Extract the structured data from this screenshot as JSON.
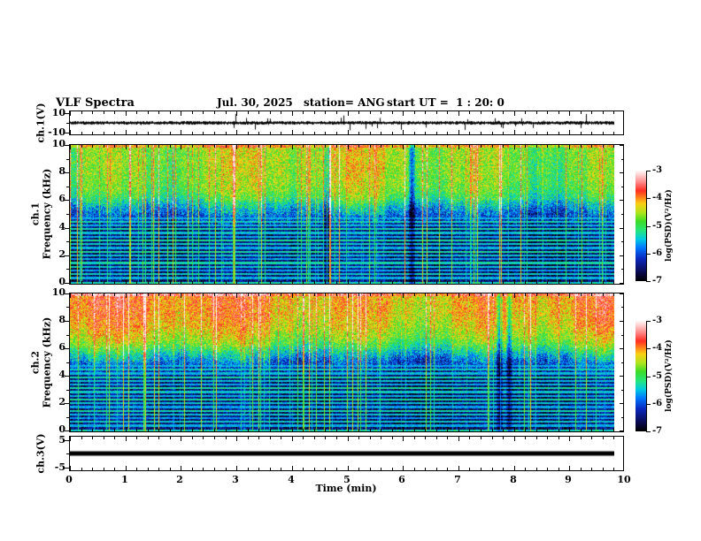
{
  "header": {
    "title": "VLF Spectra",
    "date": "Jul. 30, 2025",
    "station": "station= ANG",
    "start_ut": "start UT =  1 : 20: 0"
  },
  "axes": {
    "x": {
      "label": "Time (min)",
      "min": 0,
      "max": 10,
      "major_ticks": [
        0,
        1,
        2,
        3,
        4,
        5,
        6,
        7,
        8,
        9,
        10
      ],
      "minor_step_min": 0.2,
      "data_end_min": 9.8
    },
    "wave1_y": {
      "label": "ch.1(V)",
      "tick_labels": [
        "10",
        "-10"
      ],
      "tick_values": [
        10,
        -10
      ]
    },
    "spec_y": {
      "label_ch1": "ch.1",
      "label_ch2": "ch.2",
      "label_freq": "Frequency (kHz)",
      "major_ticks": [
        0,
        2,
        4,
        6,
        8,
        10
      ],
      "minor_ticks": [
        1,
        3,
        5,
        7,
        9
      ],
      "unit": "kHz"
    },
    "ch3_y": {
      "label": "ch.3(V)",
      "tick_labels": [
        "5",
        "-5"
      ],
      "tick_values": [
        5,
        -5
      ]
    }
  },
  "colorbar": {
    "label": "log(PSD)(V²/Hz)",
    "tick_labels": [
      "-3",
      "-4",
      "-5",
      "-6",
      "-7"
    ],
    "tick_values": [
      -3,
      -4,
      -5,
      -6,
      -7
    ],
    "zlim": [
      -7,
      -3
    ],
    "stops": [
      [
        0,
        0,
        0,
        0
      ],
      [
        0.08,
        10,
        10,
        80
      ],
      [
        0.2,
        10,
        40,
        190
      ],
      [
        0.3,
        0,
        120,
        255
      ],
      [
        0.38,
        0,
        205,
        225
      ],
      [
        0.46,
        40,
        230,
        120
      ],
      [
        0.54,
        60,
        220,
        40
      ],
      [
        0.62,
        175,
        230,
        30
      ],
      [
        0.7,
        250,
        210,
        20
      ],
      [
        0.76,
        255,
        130,
        25
      ],
      [
        0.82,
        255,
        45,
        35
      ],
      [
        0.9,
        255,
        140,
        140
      ],
      [
        1,
        255,
        246,
        246
      ]
    ]
  },
  "chart_data": [
    {
      "type": "line",
      "name": "ch1_waveform",
      "ylabel": "ch.1(V)",
      "xlim": [
        0,
        10
      ],
      "ylim": [
        -10,
        10
      ],
      "yticks": [
        10,
        -10
      ],
      "data_end_min": 9.8,
      "description": "Broadband noise centered on 0 V with ~±1.5 V envelope and impulsive sferic spikes reaching ±10 V across the full 0–9.8 min record."
    },
    {
      "type": "heatmap",
      "name": "ch1_spectrogram",
      "ylabel": "ch.1 Frequency (kHz)",
      "xlim": [
        0,
        10
      ],
      "ylim": [
        0,
        10
      ],
      "zlim": [
        -7,
        -3
      ],
      "zlabel": "log(PSD)(V²/Hz)",
      "yticks": [
        0,
        2,
        4,
        6,
        8,
        10
      ],
      "background_profile_khz_logpsd": [
        [
          0,
          -6.6
        ],
        [
          3.9,
          -6.6
        ],
        [
          4.4,
          -6.3
        ],
        [
          5.0,
          -5.95
        ],
        [
          5.6,
          -5.55
        ],
        [
          6.2,
          -5.05
        ],
        [
          6.8,
          -4.8
        ],
        [
          7.5,
          -4.7
        ],
        [
          8.5,
          -4.65
        ],
        [
          10,
          -4.6
        ]
      ],
      "narrowband_lines_khz_logpsd": [
        [
          0.45,
          -5.6
        ],
        [
          0.72,
          -5.45
        ],
        [
          0.99,
          -5.7
        ],
        [
          1.26,
          -5.5
        ],
        [
          1.53,
          -5.35
        ],
        [
          1.8,
          -5.65
        ],
        [
          2.07,
          -5.5
        ],
        [
          2.34,
          -5.3
        ],
        [
          2.61,
          -5.6
        ],
        [
          2.88,
          -5.45
        ],
        [
          3.15,
          -5.3
        ],
        [
          3.42,
          -5.6
        ],
        [
          3.69,
          -5.5
        ],
        [
          3.96,
          -5.35
        ],
        [
          4.23,
          -5.55
        ],
        [
          4.5,
          -5.4
        ],
        [
          4.77,
          -5.6
        ]
      ],
      "dropout_times_min": [
        4.62,
        6.15
      ],
      "description": "Green/yellow broadband hiss above ~5 kHz with red impulsive vertical sferic streaks; dark blue/black below ~4 kHz crossed by dense cyan narrowband horizontal lines (~0.4–4.8 kHz) and vertical streaks; bright edge row near 0 kHz."
    },
    {
      "type": "heatmap",
      "name": "ch2_spectrogram",
      "ylabel": "ch.2 Frequency (kHz)",
      "xlim": [
        0,
        10
      ],
      "ylim": [
        0,
        10
      ],
      "zlim": [
        -7,
        -3
      ],
      "zlabel": "log(PSD)(V²/Hz)",
      "yticks": [
        0,
        2,
        4,
        6,
        8,
        10
      ],
      "background_profile_khz_logpsd": [
        [
          0,
          -6.6
        ],
        [
          3.9,
          -6.6
        ],
        [
          4.4,
          -6.3
        ],
        [
          5.0,
          -5.95
        ],
        [
          5.6,
          -5.5
        ],
        [
          6.2,
          -4.95
        ],
        [
          6.8,
          -4.6
        ],
        [
          7.5,
          -4.35
        ],
        [
          8.5,
          -4.15
        ],
        [
          10,
          -4.05
        ]
      ],
      "narrowband_lines_khz_logpsd": [
        [
          0.45,
          -5.6
        ],
        [
          0.72,
          -5.45
        ],
        [
          0.99,
          -5.7
        ],
        [
          1.26,
          -5.5
        ],
        [
          1.53,
          -5.35
        ],
        [
          1.8,
          -5.65
        ],
        [
          2.07,
          -5.5
        ],
        [
          2.34,
          -5.3
        ],
        [
          2.61,
          -5.6
        ],
        [
          2.88,
          -5.45
        ],
        [
          3.15,
          -5.3
        ],
        [
          3.42,
          -5.6
        ],
        [
          3.69,
          -5.5
        ],
        [
          3.96,
          -5.35
        ],
        [
          4.23,
          -5.55
        ],
        [
          4.5,
          -5.4
        ],
        [
          4.77,
          -5.6
        ]
      ],
      "dropout_times_min": [
        7.72,
        7.9
      ],
      "description": "Same structure as ch.1 but hotter above ~7 kHz: orange/red saturated columns at 7–10 kHz; dark blue/black low band with cyan harmonic lines and vertical streaks."
    },
    {
      "type": "line",
      "name": "ch3_waveform",
      "ylabel": "ch.3(V)",
      "xlim": [
        0,
        10
      ],
      "ylim": [
        -5,
        5
      ],
      "yticks": [
        5,
        -5
      ],
      "data_end_min": 9.8,
      "value_v": 0,
      "description": "Constant flat thick black trace at 0 V from 0 to 9.8 min."
    }
  ]
}
